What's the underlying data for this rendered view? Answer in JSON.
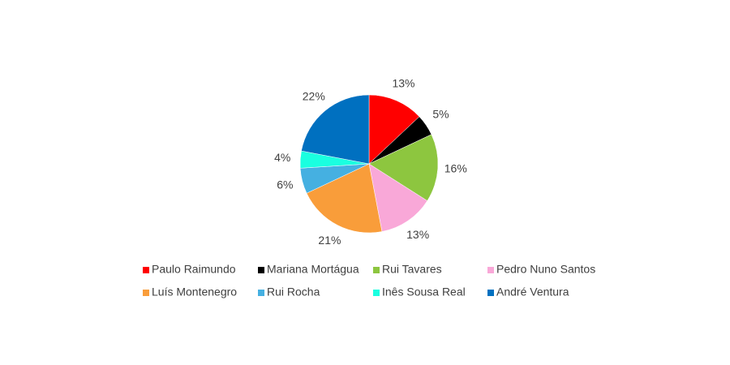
{
  "chart_data": {
    "type": "pie",
    "categories": [
      "Paulo Raimundo",
      "Mariana Mortágua",
      "Rui Tavares",
      "Pedro Nuno Santos",
      "Luís Montenegro",
      "Rui Rocha",
      "Inês Sousa Real",
      "André Ventura"
    ],
    "values": [
      13,
      5,
      16,
      13,
      21,
      6,
      4,
      22
    ],
    "value_labels": [
      "13%",
      "5%",
      "16%",
      "13%",
      "21%",
      "6%",
      "4%",
      "22%"
    ],
    "colors": [
      "#ff0000",
      "#000000",
      "#8dc63f",
      "#f9a8d8",
      "#f99d3a",
      "#45b0e1",
      "#1affe0",
      "#0070c0"
    ],
    "legend": "bottom"
  }
}
